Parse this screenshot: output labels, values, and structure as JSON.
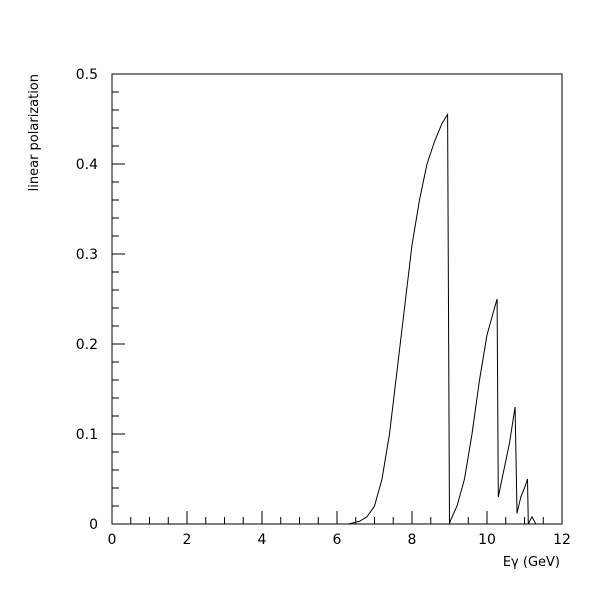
{
  "chart_data": {
    "type": "line",
    "xlabel": "Eγ (GeV)",
    "ylabel": "linear polarization",
    "xlim": [
      0,
      12
    ],
    "ylim": [
      0,
      0.5
    ],
    "x_ticks": [
      0,
      2,
      4,
      6,
      8,
      10,
      12
    ],
    "y_ticks": [
      0,
      0.1,
      0.2,
      0.3,
      0.4,
      0.5
    ],
    "x_tick_labels": [
      "0",
      "2",
      "4",
      "6",
      "8",
      "10",
      "12"
    ],
    "y_tick_labels": [
      "0",
      "0.1",
      "0.2",
      "0.3",
      "0.4",
      "0.5"
    ],
    "grid": false,
    "legend": "none",
    "line_color": "#000000",
    "series": [
      {
        "x": [
          0.0,
          6.0,
          6.3,
          6.6,
          6.8,
          7.0,
          7.2,
          7.4,
          7.6,
          7.8,
          8.0,
          8.2,
          8.4,
          8.6,
          8.8,
          8.95,
          9.0,
          9.02,
          9.2,
          9.4,
          9.6,
          9.8,
          10.0,
          10.2,
          10.27,
          10.3,
          10.4,
          10.6,
          10.75,
          10.8,
          10.9,
          11.0,
          11.08,
          11.1,
          11.2,
          11.3
        ],
        "y": [
          0.0,
          0.0,
          0.0,
          0.003,
          0.008,
          0.02,
          0.05,
          0.1,
          0.17,
          0.24,
          0.31,
          0.36,
          0.4,
          0.425,
          0.445,
          0.455,
          0.0,
          0.003,
          0.02,
          0.05,
          0.1,
          0.16,
          0.21,
          0.24,
          0.25,
          0.03,
          0.05,
          0.09,
          0.13,
          0.012,
          0.03,
          0.04,
          0.05,
          0.0,
          0.008,
          0.0
        ]
      }
    ]
  }
}
